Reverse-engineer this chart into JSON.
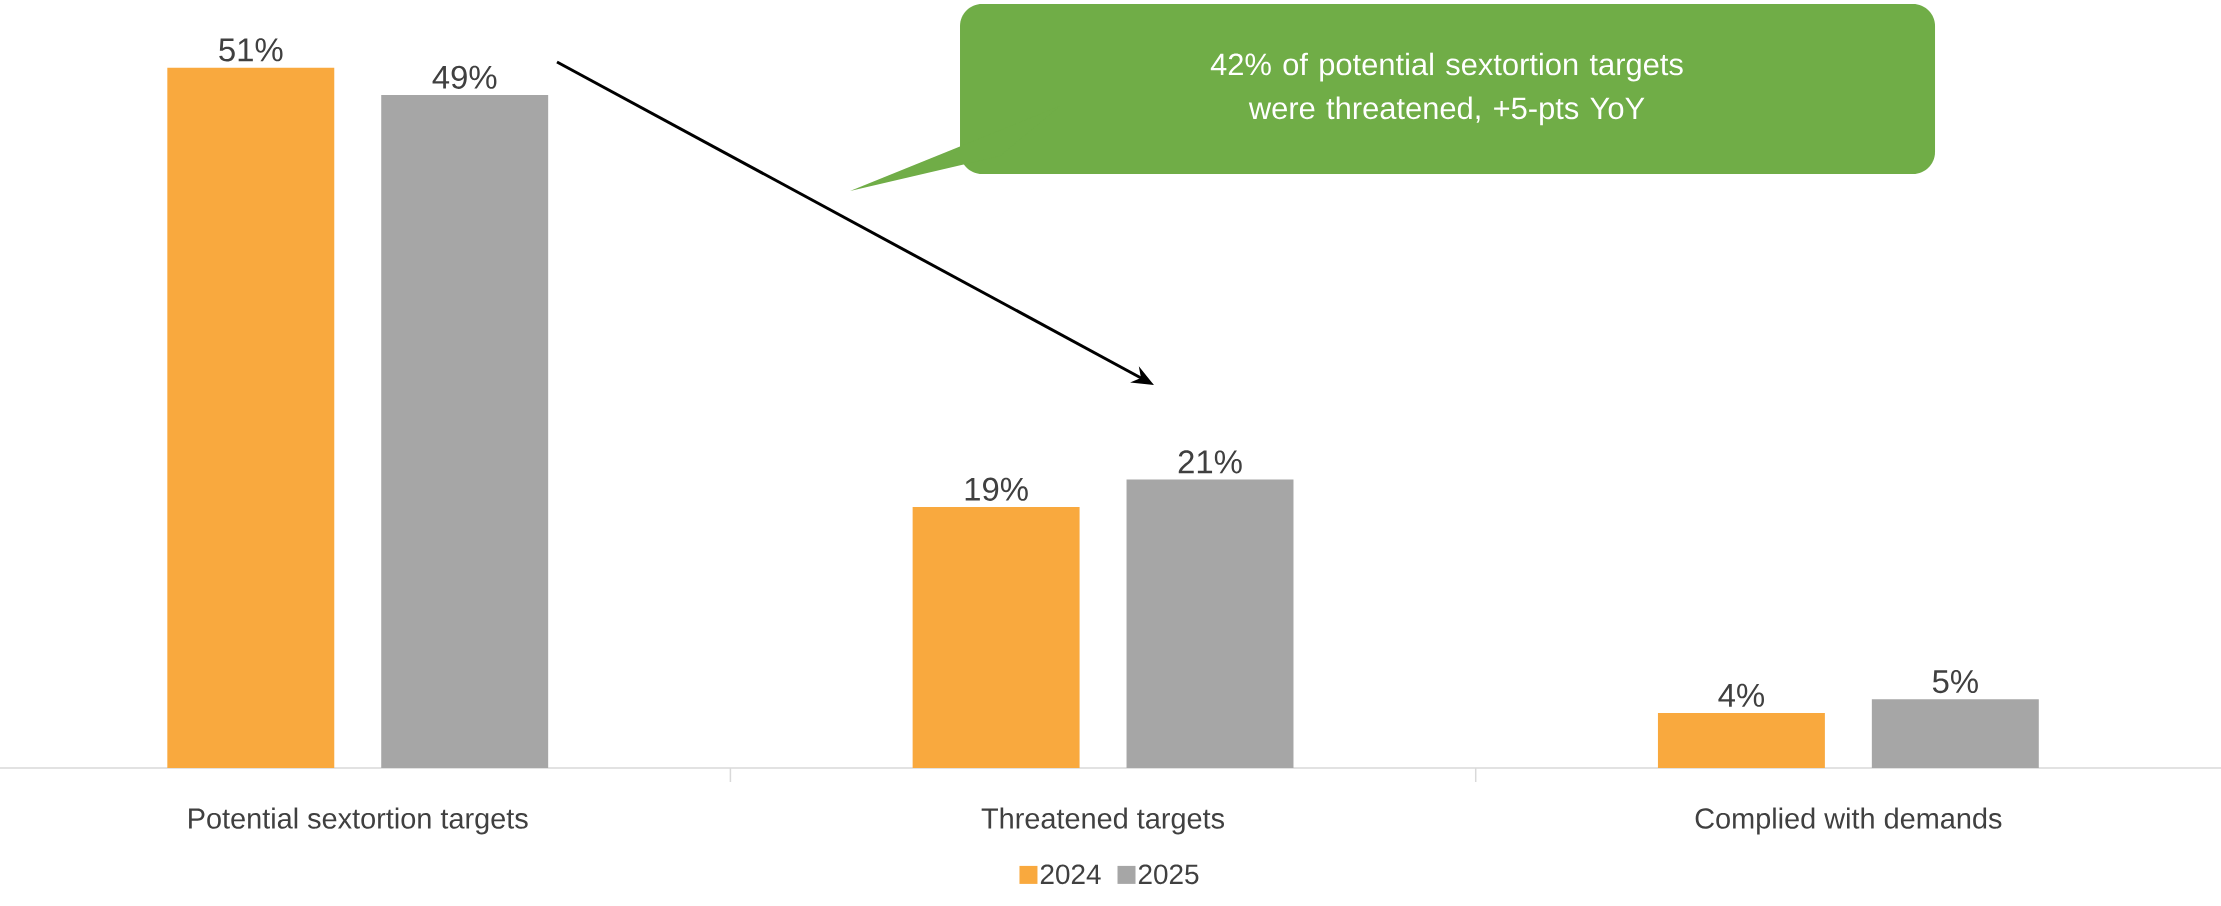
{
  "chart_data": {
    "type": "bar",
    "categories": [
      "Potential sextortion targets",
      "Threatened targets",
      "Complied with demands"
    ],
    "series": [
      {
        "name": "2024",
        "color": "#f9a93e",
        "values": [
          51,
          19,
          4
        ],
        "value_labels": [
          "51%",
          "19%",
          "4%"
        ]
      },
      {
        "name": "2025",
        "color": "#a6a6a6",
        "values": [
          49,
          21,
          5
        ],
        "value_labels": [
          "49%",
          "21%",
          "5%"
        ]
      }
    ],
    "ylim": [
      0,
      56
    ],
    "tick_labels": "x",
    "legend": "bottom",
    "annotations": [
      "42% of potential sextortion targets were threatened, +5-pts YoY"
    ]
  }
}
